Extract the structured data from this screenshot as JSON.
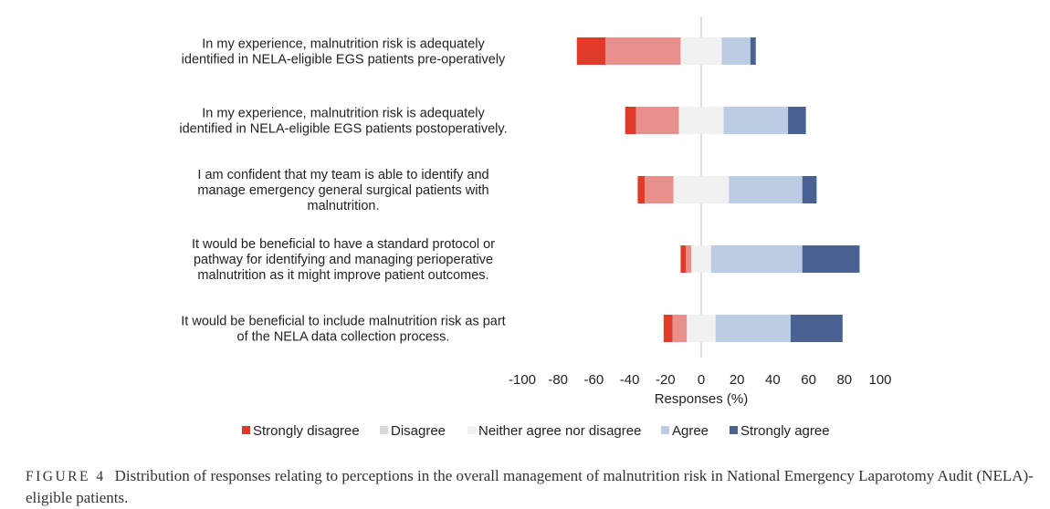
{
  "chart_data": {
    "type": "diverging-stacked-bar",
    "xlabel": "Responses (%)",
    "xlim": [
      -100,
      100
    ],
    "xticks": [
      -100,
      -80,
      -60,
      -40,
      -20,
      0,
      20,
      40,
      60,
      80,
      100
    ],
    "legend_position": "bottom",
    "series": [
      {
        "name": "Strongly disagree",
        "color": "#e03a2a"
      },
      {
        "name": "Disagree",
        "color": "#e8908c"
      },
      {
        "name": "Neither agree nor disagree",
        "color": "#f1f1f1"
      },
      {
        "name": "Agree",
        "color": "#bccce3"
      },
      {
        "name": "Strongly agree",
        "color": "#4a6291"
      }
    ],
    "legend_colors": [
      "#e03a2a",
      "#d9d9d9",
      "#f1f1f1",
      "#bccce3",
      "#4a6291"
    ],
    "categories": [
      {
        "label_lines": [
          "In my experience, malnutrition risk is adequately",
          "identified in NELA-eligible EGS patients pre-operatively"
        ],
        "values": [
          16,
          42,
          23,
          16,
          3
        ]
      },
      {
        "label_lines": [
          "In my experience, malnutrition risk is adequately",
          "identified in NELA-eligible EGS patients postoperatively."
        ],
        "values": [
          6,
          24,
          25,
          36,
          10
        ]
      },
      {
        "label_lines": [
          "I am confident that my team is able to identify and",
          "manage emergency general surgical patients with",
          "malnutrition."
        ],
        "values": [
          4,
          16,
          31,
          41,
          8
        ]
      },
      {
        "label_lines": [
          "It would be beneficial to have a standard protocol or",
          "pathway for identifying and managing perioperative",
          "malnutrition as it might improve patient outcomes."
        ],
        "values": [
          3,
          3,
          11,
          51,
          32
        ]
      },
      {
        "label_lines": [
          "It would be beneficial to include malnutrition risk as part",
          "of the NELA data collection process."
        ],
        "values": [
          5,
          8,
          16,
          42,
          29
        ]
      }
    ]
  },
  "caption": {
    "figure_label": "FIGURE 4",
    "text": "Distribution of responses relating to perceptions in the overall management of malnutrition risk in National Emergency Laparotomy Audit (NELA)-eligible patients."
  }
}
